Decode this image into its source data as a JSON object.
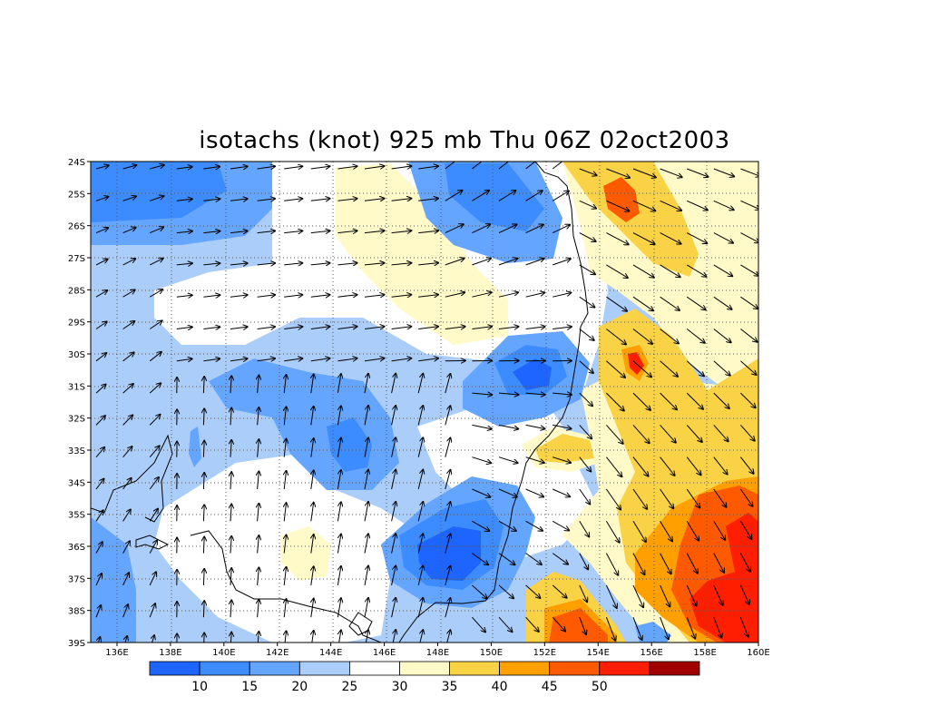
{
  "title": "isotachs (knot) 925 mb Thu 06Z 02oct2003",
  "map": {
    "lat_labels": [
      "24S",
      "25S",
      "26S",
      "27S",
      "28S",
      "29S",
      "30S",
      "31S",
      "32S",
      "33S",
      "34S",
      "35S",
      "36S",
      "37S",
      "38S",
      "39S"
    ],
    "lon_labels": [
      "136E",
      "138E",
      "140E",
      "142E",
      "144E",
      "146E",
      "148E",
      "150E",
      "152E",
      "154E",
      "156E",
      "158E",
      "160E"
    ],
    "grid": "dotted",
    "field": "isotachs (knot)",
    "overlay": "wind vectors",
    "coastline": true
  },
  "colorbar": {
    "colors": [
      "#1e64ff",
      "#3c8cff",
      "#64a5ff",
      "#aacdfa",
      "#ffffff",
      "#fffac8",
      "#fad246",
      "#ffa000",
      "#ff5a00",
      "#ff1e00",
      "#a00000"
    ],
    "labels": [
      "10",
      "15",
      "20",
      "25",
      "30",
      "35",
      "40",
      "45",
      "50"
    ]
  }
}
